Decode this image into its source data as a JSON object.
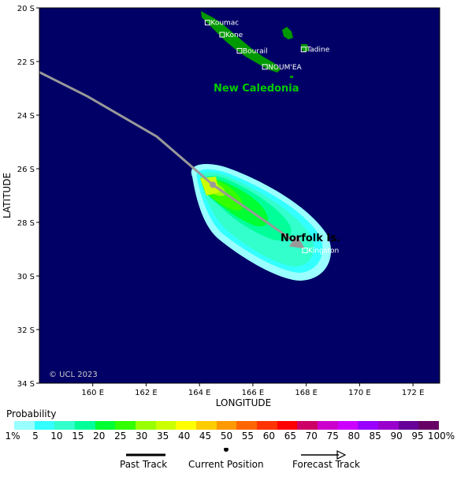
{
  "map": {
    "ocean_color": "#000066",
    "land_color": "#009900",
    "track_color": "#999999",
    "axes": {
      "x_title": "LONGITUDE",
      "y_title": "LATITUDE",
      "lon_range": [
        158,
        173
      ],
      "lat_range": [
        20,
        34
      ],
      "lon_ticks": [
        {
          "value": 160,
          "label": "160 E"
        },
        {
          "value": 162,
          "label": "162 E"
        },
        {
          "value": 164,
          "label": "164 E"
        },
        {
          "value": 166,
          "label": "166 E"
        },
        {
          "value": 168,
          "label": "168 E"
        },
        {
          "value": 170,
          "label": "170 E"
        },
        {
          "value": 172,
          "label": "172 E"
        }
      ],
      "lat_ticks": [
        {
          "value": 20,
          "label": "20 S"
        },
        {
          "value": 22,
          "label": "22 S"
        },
        {
          "value": 24,
          "label": "24 S"
        },
        {
          "value": 26,
          "label": "26 S"
        },
        {
          "value": 28,
          "label": "28 S"
        },
        {
          "value": 30,
          "label": "30 S"
        },
        {
          "value": 32,
          "label": "32 S"
        },
        {
          "value": 34,
          "label": "34 S"
        }
      ]
    },
    "places": [
      {
        "name": "Koumac",
        "lon": 164.3,
        "lat": 20.55
      },
      {
        "name": "Kone",
        "lon": 164.85,
        "lat": 21.0
      },
      {
        "name": "Bourail",
        "lon": 165.5,
        "lat": 21.6
      },
      {
        "name": "Tadine",
        "lon": 167.9,
        "lat": 21.55
      },
      {
        "name": "NOUM'EA",
        "lon": 166.45,
        "lat": 22.2
      },
      {
        "name": "Kingston",
        "lon": 167.95,
        "lat": 29.05
      }
    ],
    "region_labels": [
      {
        "text": "New Caledonia",
        "color": "#00cc00"
      },
      {
        "text": "Norfolk Is.",
        "color": "#000000"
      }
    ],
    "copyright": "© UCL 2023",
    "past_track": [
      {
        "lon": 158.0,
        "lat": 22.4
      },
      {
        "lon": 159.8,
        "lat": 23.3
      },
      {
        "lon": 162.4,
        "lat": 24.8
      },
      {
        "lon": 164.5,
        "lat": 26.6
      }
    ],
    "current_position": {
      "lon": 164.5,
      "lat": 26.6
    },
    "forecast_track": [
      {
        "lon": 164.5,
        "lat": 26.6
      },
      {
        "lon": 167.9,
        "lat": 28.95
      }
    ]
  },
  "legend": {
    "title": "Probability",
    "colors": [
      "#99ffff",
      "#33ffff",
      "#33ffcc",
      "#00ff99",
      "#00ff33",
      "#33ff00",
      "#99ff00",
      "#ccff00",
      "#ffff00",
      "#ffcc00",
      "#ff9900",
      "#ff6600",
      "#ff3300",
      "#ff0000",
      "#cc0066",
      "#cc00cc",
      "#cc00ff",
      "#9900ff",
      "#9900cc",
      "#660099",
      "#660066"
    ],
    "labels": [
      "1%",
      "5",
      "10",
      "15",
      "20",
      "25",
      "30",
      "35",
      "40",
      "45",
      "50",
      "55",
      "60",
      "65",
      "70",
      "75",
      "80",
      "85",
      "90",
      "95",
      "100%"
    ]
  },
  "key": {
    "past_track": "Past Track",
    "current_position": "Current Position",
    "forecast_track": "Forecast Track"
  }
}
